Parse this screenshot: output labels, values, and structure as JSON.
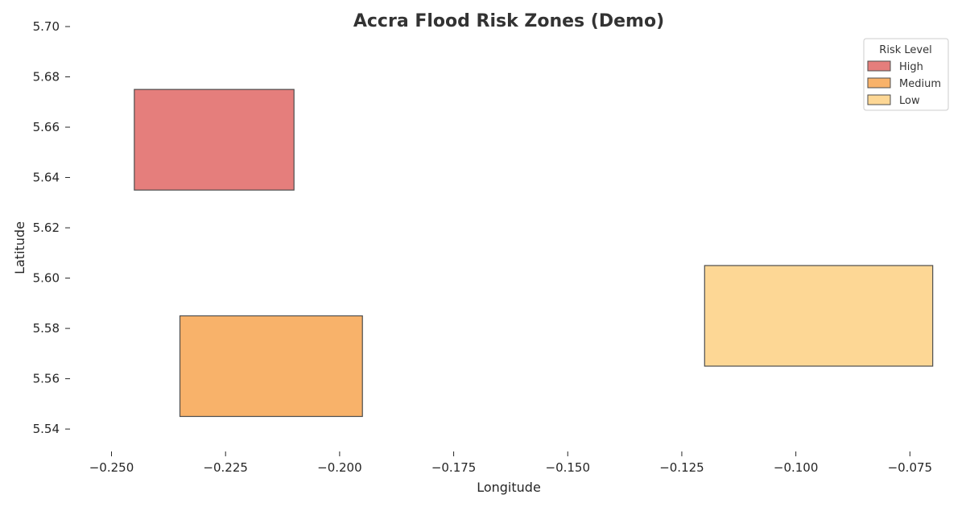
{
  "chart_data": {
    "type": "area",
    "title": "Accra Flood Risk Zones (Demo)",
    "xlabel": "Longitude",
    "ylabel": "Latitude",
    "xlim": [
      -0.2575,
      -0.068
    ],
    "ylim": [
      5.533,
      5.7
    ],
    "x_ticks": [
      -0.25,
      -0.225,
      -0.2,
      -0.175,
      -0.15,
      -0.125,
      -0.1,
      -0.075
    ],
    "x_tick_labels": [
      "−0.250",
      "−0.225",
      "−0.200",
      "−0.175",
      "−0.150",
      "−0.125",
      "−0.100",
      "−0.075"
    ],
    "y_ticks": [
      5.54,
      5.56,
      5.58,
      5.6,
      5.62,
      5.64,
      5.66,
      5.68,
      5.7
    ],
    "y_tick_labels": [
      "5.54",
      "5.56",
      "5.58",
      "5.60",
      "5.62",
      "5.64",
      "5.66",
      "5.68",
      "5.70"
    ],
    "grid": false,
    "legend": {
      "title": "Risk Level",
      "placement": "top-right",
      "entries": [
        {
          "label": "High",
          "color": "#e57e7c"
        },
        {
          "label": "Medium",
          "color": "#f8b26a"
        },
        {
          "label": "Low",
          "color": "#fdd795"
        }
      ]
    },
    "zones": [
      {
        "risk": "High",
        "lon_min": -0.245,
        "lon_max": -0.21,
        "lat_min": 5.635,
        "lat_max": 5.675,
        "color": "#e57e7c"
      },
      {
        "risk": "Medium",
        "lon_min": -0.235,
        "lon_max": -0.195,
        "lat_min": 5.545,
        "lat_max": 5.585,
        "color": "#f8b26a"
      },
      {
        "risk": "Low",
        "lon_min": -0.12,
        "lon_max": -0.07,
        "lat_min": 5.565,
        "lat_max": 5.605,
        "color": "#fdd795"
      }
    ],
    "edge_color": "#4d4d4d"
  }
}
